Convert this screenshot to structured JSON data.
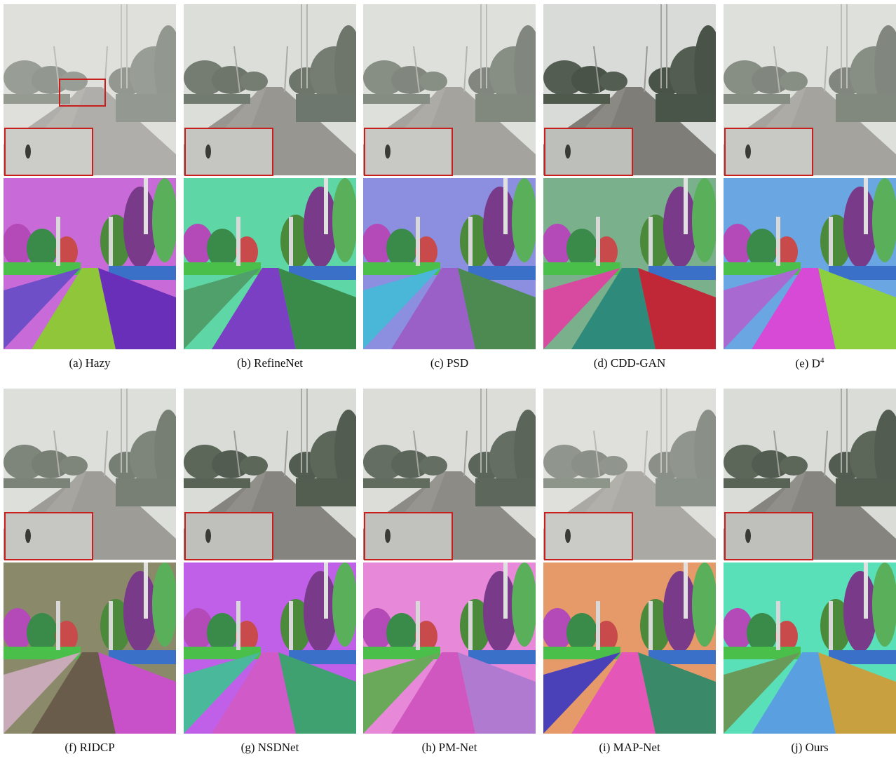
{
  "panels": [
    {
      "caption": "(a) Hazy",
      "fog": 0.55,
      "seg": {
        "sky": "#c86ad8",
        "road": "#8fc63a",
        "left": "#6e4fc8",
        "right": "#6a2fb8"
      }
    },
    {
      "caption": "(b) RefineNet",
      "fog": 0.35,
      "seg": {
        "sky": "#5ed6a6",
        "road": "#7a3fc2",
        "left": "#4fa06a",
        "right": "#3a8a4a"
      }
    },
    {
      "caption": "(c) PSD",
      "fog": 0.45,
      "seg": {
        "sky": "#8c8fe0",
        "road": "#9a60c8",
        "left": "#4ab6d8",
        "right": "#4c8a52"
      }
    },
    {
      "caption": "(d) CDD-GAN",
      "fog": 0.15,
      "seg": {
        "sky": "#7ab08c",
        "road": "#2e8a7a",
        "left": "#d84aa0",
        "right": "#c02838"
      }
    },
    {
      "caption": "(e) D",
      "sup": "4",
      "fog": 0.45,
      "seg": {
        "sky": "#6aa6e2",
        "road": "#d64ad6",
        "left": "#a86ad0",
        "right": "#8cd040"
      }
    },
    {
      "caption": "(f) RIDCP",
      "fog": 0.4,
      "seg": {
        "sky": "#8a8a6a",
        "road": "#6a5c4a",
        "left": "#c8aab8",
        "right": "#c850c8"
      }
    },
    {
      "caption": "(g) NSDNet",
      "fog": 0.2,
      "seg": {
        "sky": "#c060e8",
        "road": "#d05ac8",
        "left": "#4ab89a",
        "right": "#3fa070"
      }
    },
    {
      "caption": "(h) PM-Net",
      "fog": 0.25,
      "seg": {
        "sky": "#e888d8",
        "road": "#d056c0",
        "left": "#6aa85a",
        "right": "#b07ad0"
      }
    },
    {
      "caption": "(i) MAP-Net",
      "fog": 0.5,
      "seg": {
        "sky": "#e69a6a",
        "road": "#e456b8",
        "left": "#4a40b8",
        "right": "#3a8a6a"
      }
    },
    {
      "caption": "(j) Ours",
      "fog": 0.2,
      "seg": {
        "sky": "#5ae0b8",
        "road": "#5aa0e0",
        "left": "#6a9a5a",
        "right": "#c8a040"
      }
    }
  ]
}
